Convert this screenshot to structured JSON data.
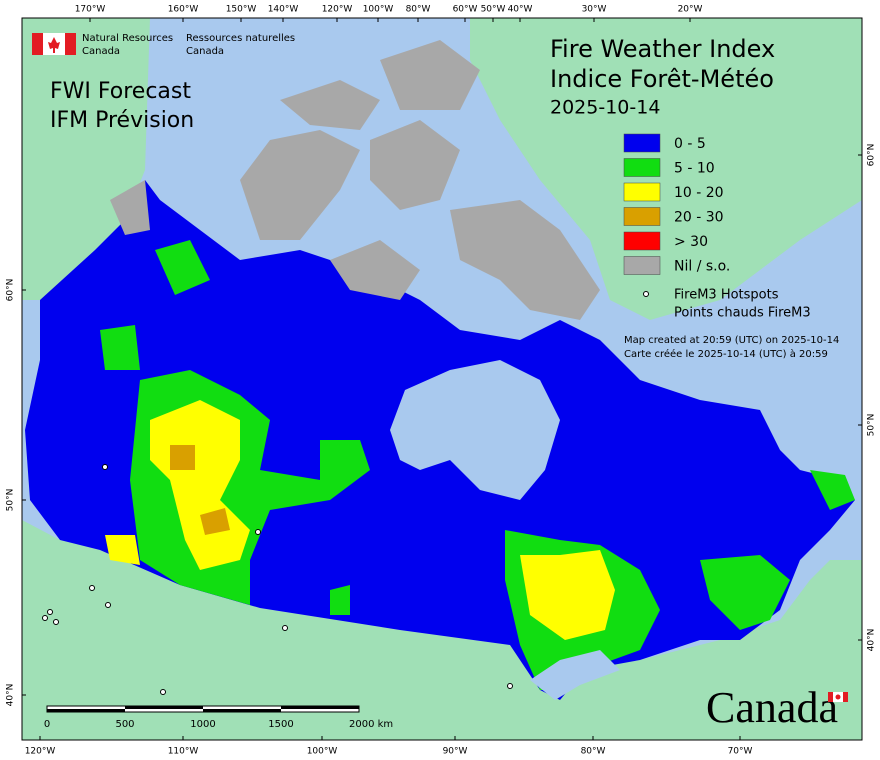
{
  "header": {
    "agency_en": [
      "Natural Resources",
      "Canada"
    ],
    "agency_fr": [
      "Ressources naturelles",
      "Canada"
    ],
    "product_en": "FWI Forecast",
    "product_fr": "IFM Prévision",
    "title_en": "Fire Weather Index",
    "title_fr": "Indice Forêt-Météo",
    "date": "2025-10-14"
  },
  "legend": {
    "items": [
      {
        "label": "0 - 5",
        "color": "#0000ee"
      },
      {
        "label": "5 - 10",
        "color": "#11dd11"
      },
      {
        "label": "10 - 20",
        "color": "#ffff00"
      },
      {
        "label": "20 - 30",
        "color": "#d9a000"
      },
      {
        "label": "> 30",
        "color": "#ff0000"
      },
      {
        "label": "Nil / s.o.",
        "color": "#a8a8a8"
      }
    ],
    "hotspots": [
      "FireM3 Hotspots",
      "Points chauds FireM3"
    ]
  },
  "notes": [
    "Map created at 20:59 (UTC) on 2025-10-14",
    "Carte créée le 2025-10-14 (UTC) à 20:59"
  ],
  "axes": {
    "top": [
      "170°W",
      "160°W",
      "150°W",
      "140°W",
      "120°W",
      "100°W",
      "80°W",
      "60°W",
      "50°W",
      "40°W",
      "30°W",
      "20°W"
    ],
    "bottom": [
      "120°W",
      "110°W",
      "100°W",
      "90°W",
      "80°W",
      "70°W"
    ],
    "left": [
      "60°N",
      "50°N",
      "40°N"
    ],
    "right": [
      "60°N",
      "50°N",
      "40°N"
    ]
  },
  "scale": [
    "0",
    "500",
    "1000",
    "1500",
    "2000 km"
  ],
  "wordmark": "Canada"
}
